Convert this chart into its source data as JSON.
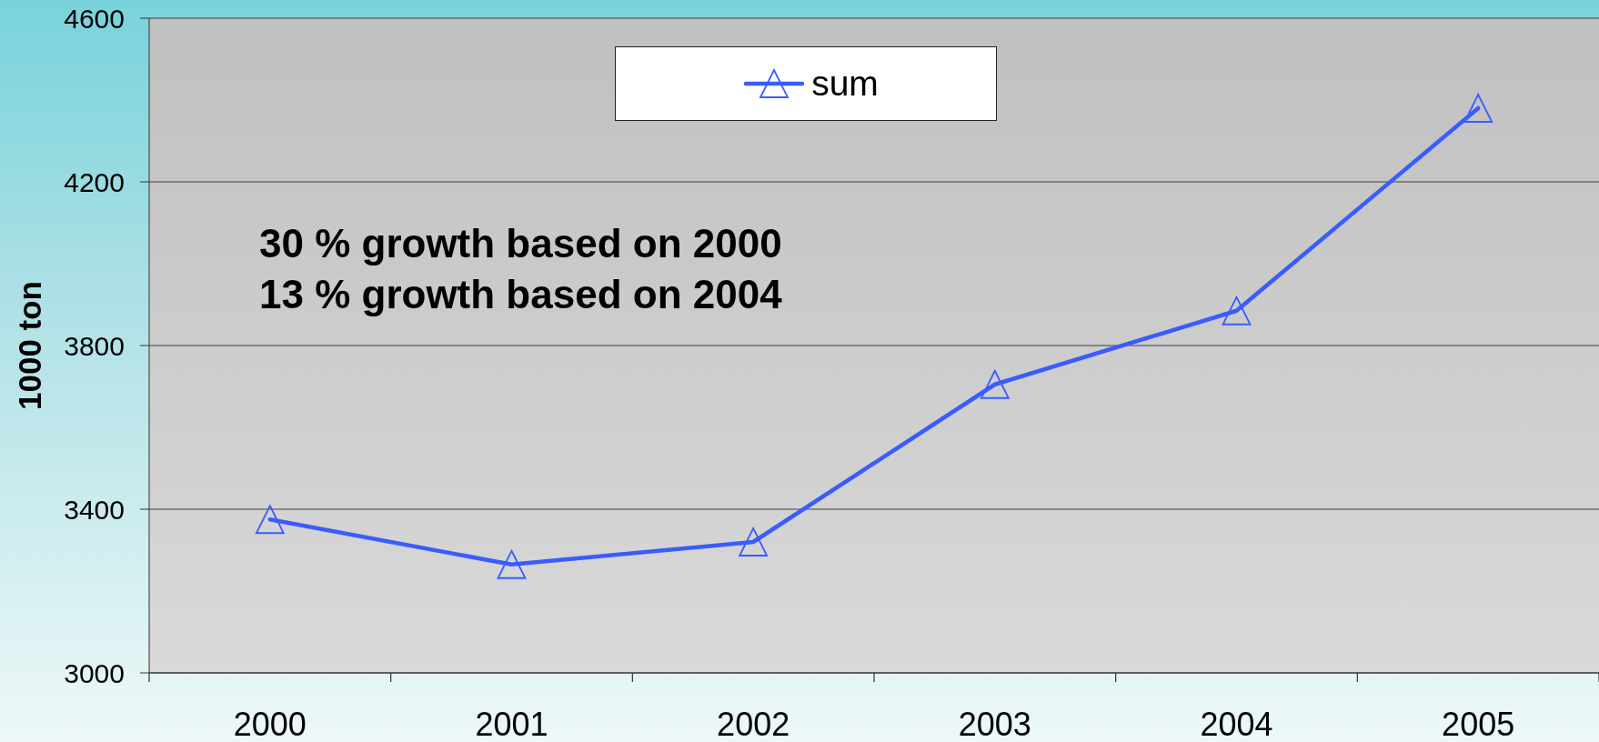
{
  "chart_data": {
    "type": "line",
    "ylabel": "1000 ton",
    "categories": [
      "2000",
      "2001",
      "2002",
      "2003",
      "2004",
      "2005"
    ],
    "series": [
      {
        "name": "sum",
        "color": "#3a5cff",
        "values": [
          3375,
          3265,
          3320,
          3705,
          3885,
          4380
        ]
      }
    ],
    "ylim": [
      3000,
      4600
    ],
    "yticks": [
      3000,
      3400,
      3800,
      4200,
      4600
    ],
    "grid": "y",
    "legend": "top",
    "marker": "triangle",
    "line_style": "solid",
    "annotations": [
      "30 % growth based on 2000",
      "13 % growth based on 2004"
    ]
  }
}
